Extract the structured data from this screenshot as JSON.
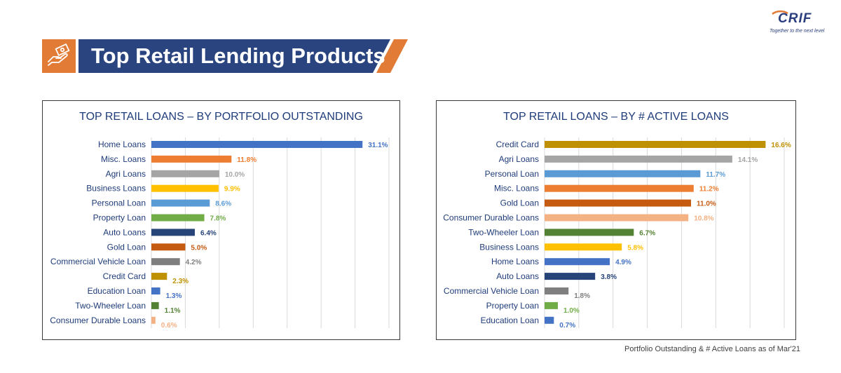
{
  "header": {
    "title": "Top Retail Lending Products",
    "icon": "hand-money-icon",
    "colors": {
      "navy": "#2a4480",
      "orange": "#e17b35"
    }
  },
  "logo": {
    "word": "CRIF",
    "tagline": "Together to the next level"
  },
  "footnote": "Portfolio Outstanding & # Active Loans as of Mar'21",
  "chart_data": [
    {
      "type": "bar",
      "orientation": "horizontal",
      "title": "TOP RETAIL LOANS – BY PORTFOLIO OUTSTANDING",
      "categories": [
        "Home Loans",
        "Misc. Loans",
        "Agri Loans",
        "Business Loans",
        "Personal Loan",
        "Property Loan",
        "Auto Loans",
        "Gold Loan",
        "Commercial Vehicle Loan",
        "Credit Card",
        "Education Loan",
        "Two-Wheeler Loan",
        "Consumer Durable Loans"
      ],
      "values": [
        31.1,
        11.8,
        10.0,
        9.9,
        8.6,
        7.8,
        6.4,
        5.0,
        4.2,
        2.3,
        1.3,
        1.1,
        0.6
      ],
      "labels": [
        "31.1%",
        "11.8%",
        "10.0%",
        "9.9%",
        "8.6%",
        "7.8%",
        "6.4%",
        "5.0%",
        "4.2%",
        "2.3%",
        "1.3%",
        "1.1%",
        "0.6%"
      ],
      "colors": [
        "#4472c4",
        "#ed7d31",
        "#a5a5a5",
        "#ffc000",
        "#5b9bd5",
        "#70ad47",
        "#264478",
        "#c55a11",
        "#7f7f7f",
        "#bf9000",
        "#4472c4",
        "#548235",
        "#f4b183"
      ],
      "xlim": [
        0,
        35
      ],
      "grid": true
    },
    {
      "type": "bar",
      "orientation": "horizontal",
      "title": "TOP RETAIL LOANS – BY # ACTIVE LOANS",
      "categories": [
        "Credit Card",
        "Agri Loans",
        "Personal Loan",
        "Misc. Loans",
        "Gold Loan",
        "Consumer Durable Loans",
        "Two-Wheeler Loan",
        "Business Loans",
        "Home Loans",
        "Auto Loans",
        "Commercial Vehicle Loan",
        "Property Loan",
        "Education Loan"
      ],
      "values": [
        16.6,
        14.1,
        11.7,
        11.2,
        11.0,
        10.8,
        6.7,
        5.8,
        4.9,
        3.8,
        1.8,
        1.0,
        0.7
      ],
      "labels": [
        "16.6%",
        "14.1%",
        "11.7%",
        "11.2%",
        "11.0%",
        "10.8%",
        "6.7%",
        "5.8%",
        "4.9%",
        "3.8%",
        "1.8%",
        "1.0%",
        "0.7%"
      ],
      "colors": [
        "#bf9000",
        "#a5a5a5",
        "#5b9bd5",
        "#ed7d31",
        "#c55a11",
        "#f4b183",
        "#548235",
        "#ffc000",
        "#4472c4",
        "#264478",
        "#7f7f7f",
        "#70ad47",
        "#4472c4"
      ],
      "xlim": [
        0,
        18
      ],
      "grid": true
    }
  ]
}
